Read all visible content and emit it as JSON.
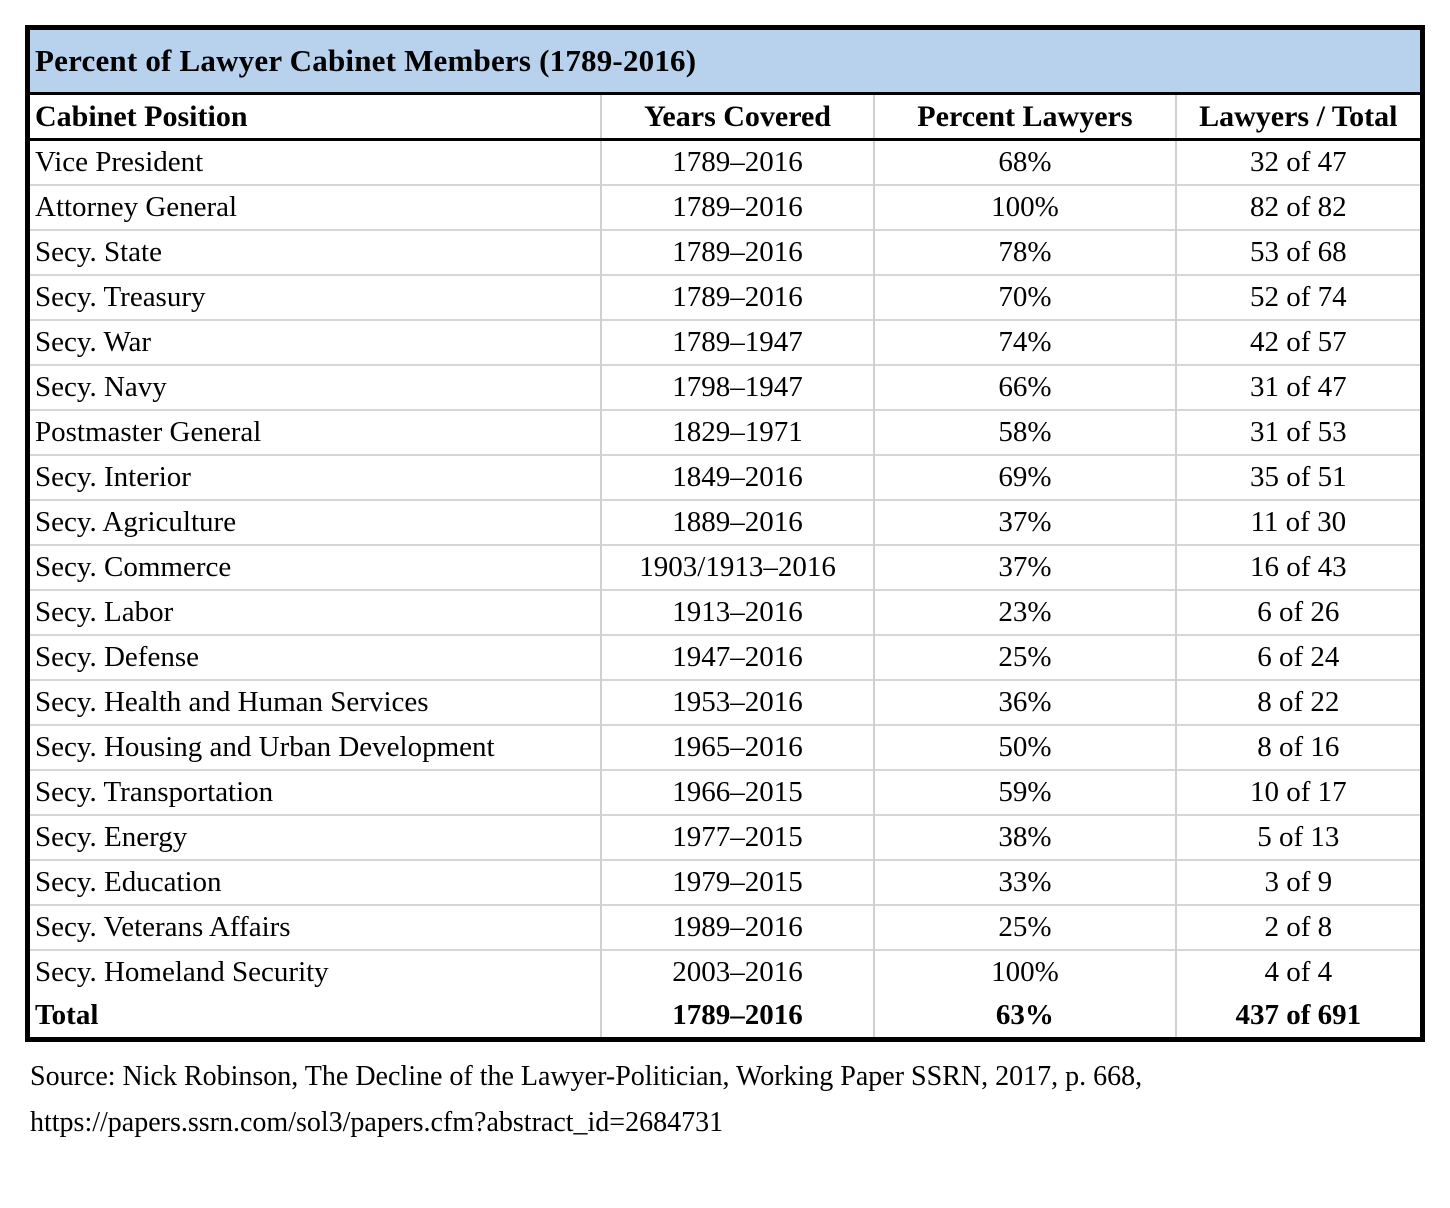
{
  "chart_data": {
    "type": "table",
    "title": "Percent of Lawyer Cabinet Members (1789-2016)",
    "columns": [
      "Cabinet Position",
      "Years Covered",
      "Percent Lawyers",
      "Lawyers / Total"
    ],
    "rows": [
      {
        "position": "Vice President",
        "years": "1789–2016",
        "percent": "68%",
        "ratio": "32 of 47"
      },
      {
        "position": "Attorney General",
        "years": "1789–2016",
        "percent": "100%",
        "ratio": "82 of 82"
      },
      {
        "position": "Secy. State",
        "years": "1789–2016",
        "percent": "78%",
        "ratio": "53 of 68"
      },
      {
        "position": "Secy. Treasury",
        "years": "1789–2016",
        "percent": "70%",
        "ratio": "52 of 74"
      },
      {
        "position": "Secy. War",
        "years": "1789–1947",
        "percent": "74%",
        "ratio": "42 of 57"
      },
      {
        "position": "Secy. Navy",
        "years": "1798–1947",
        "percent": "66%",
        "ratio": "31 of 47"
      },
      {
        "position": "Postmaster General",
        "years": "1829–1971",
        "percent": "58%",
        "ratio": "31 of 53"
      },
      {
        "position": "Secy. Interior",
        "years": "1849–2016",
        "percent": "69%",
        "ratio": "35 of 51"
      },
      {
        "position": "Secy. Agriculture",
        "years": "1889–2016",
        "percent": "37%",
        "ratio": "11 of 30"
      },
      {
        "position": "Secy. Commerce",
        "years": "1903/1913–2016",
        "percent": "37%",
        "ratio": "16 of 43"
      },
      {
        "position": "Secy. Labor",
        "years": "1913–2016",
        "percent": "23%",
        "ratio": "6 of 26"
      },
      {
        "position": "Secy. Defense",
        "years": "1947–2016",
        "percent": "25%",
        "ratio": "6 of 24"
      },
      {
        "position": "Secy. Health and Human Services",
        "years": "1953–2016",
        "percent": "36%",
        "ratio": "8 of 22"
      },
      {
        "position": "Secy. Housing and Urban Development",
        "years": "1965–2016",
        "percent": "50%",
        "ratio": "8 of 16"
      },
      {
        "position": "Secy. Transportation",
        "years": "1966–2015",
        "percent": "59%",
        "ratio": "10 of 17"
      },
      {
        "position": "Secy. Energy",
        "years": "1977–2015",
        "percent": "38%",
        "ratio": "5 of 13"
      },
      {
        "position": "Secy. Education",
        "years": "1979–2015",
        "percent": "33%",
        "ratio": "3 of 9"
      },
      {
        "position": "Secy. Veterans Affairs",
        "years": "1989–2016",
        "percent": "25%",
        "ratio": "2 of 8"
      },
      {
        "position": "Secy. Homeland Security",
        "years": "2003–2016",
        "percent": "100%",
        "ratio": "4 of 4"
      }
    ],
    "total_row": {
      "position": "Total",
      "years": "1789–2016",
      "percent": "63%",
      "ratio": "437 of 691"
    },
    "layout": {
      "title_bg": "#b8d1ec",
      "outer_border": "#000000",
      "gridline": "#d0d0d0",
      "header_alignment": "first column left, others centered"
    }
  },
  "source": {
    "line1": "Source: Nick Robinson, The Decline of the Lawyer-Politician, Working Paper SSRN, 2017, p. 668,",
    "line2": "https://papers.ssrn.com/sol3/papers.cfm?abstract_id=2684731"
  }
}
